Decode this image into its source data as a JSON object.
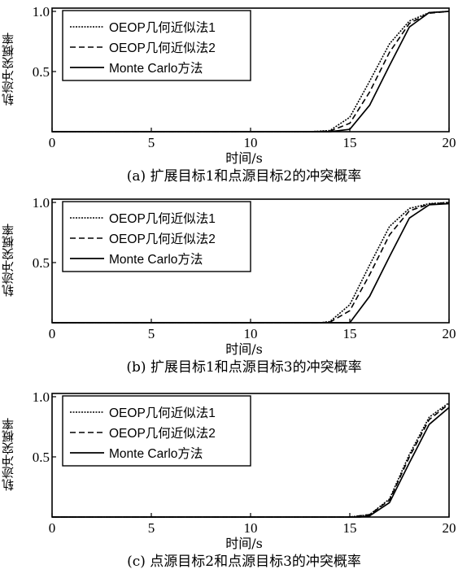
{
  "chart_data": [
    {
      "type": "line",
      "caption": "(a) 扩展目标1和点源目标2的冲突概率",
      "xlabel": "时间/s",
      "ylabel": "轨迹冲突概率",
      "xlim": [
        0,
        20
      ],
      "ylim": [
        0,
        1.0
      ],
      "xticks": [
        "0",
        "5",
        "10",
        "15",
        "20"
      ],
      "yticks": [
        "0.5",
        "1.0"
      ],
      "legend_position": "top-left",
      "series": [
        {
          "name": "OEOP几何近似法1",
          "style": "dotted",
          "x": [
            0,
            13,
            14,
            15,
            16,
            17,
            18,
            19,
            20
          ],
          "y": [
            0,
            0,
            0.01,
            0.12,
            0.42,
            0.73,
            0.92,
            0.99,
            1.0
          ]
        },
        {
          "name": "OEOP几何近似法2",
          "style": "dashed",
          "x": [
            0,
            13,
            14,
            15,
            16,
            17,
            18,
            19,
            20
          ],
          "y": [
            0,
            0,
            0.005,
            0.07,
            0.33,
            0.66,
            0.9,
            0.985,
            1.0
          ]
        },
        {
          "name": "Monte Carlo方法",
          "style": "solid",
          "x": [
            0,
            14,
            15,
            16,
            17,
            18,
            19,
            20
          ],
          "y": [
            0,
            0,
            0.02,
            0.22,
            0.55,
            0.87,
            0.99,
            1.0
          ]
        }
      ]
    },
    {
      "type": "line",
      "caption": "(b) 扩展目标1和点源目标3的冲突概率",
      "xlabel": "时间/s",
      "ylabel": "轨迹冲突概率",
      "xlim": [
        0,
        20
      ],
      "ylim": [
        0,
        1.0
      ],
      "xticks": [
        "0",
        "5",
        "10",
        "15",
        "20"
      ],
      "yticks": [
        "0.5",
        "1.0"
      ],
      "legend_position": "top-left",
      "series": [
        {
          "name": "OEOP几何近似法1",
          "style": "dotted",
          "x": [
            0,
            13.5,
            14,
            15,
            16,
            17,
            18,
            19,
            20
          ],
          "y": [
            0,
            0,
            0.01,
            0.15,
            0.48,
            0.8,
            0.95,
            0.99,
            1.0
          ]
        },
        {
          "name": "OEOP几何近似法2",
          "style": "dashed",
          "x": [
            0,
            13.5,
            14,
            15,
            16,
            17,
            18,
            19,
            20
          ],
          "y": [
            0,
            0,
            0.005,
            0.1,
            0.4,
            0.73,
            0.93,
            0.985,
            1.0
          ]
        },
        {
          "name": "Monte Carlo方法",
          "style": "solid",
          "x": [
            0,
            15,
            16,
            17,
            18,
            19,
            20
          ],
          "y": [
            0,
            0,
            0.22,
            0.55,
            0.87,
            0.98,
            0.99
          ]
        }
      ]
    },
    {
      "type": "line",
      "caption": "(c) 点源目标2和点源目标3的冲突概率",
      "xlabel": "时间/s",
      "ylabel": "轨迹冲突概率",
      "xlim": [
        0,
        20
      ],
      "ylim": [
        0,
        1.0
      ],
      "xticks": [
        "0",
        "5",
        "10",
        "15",
        "20"
      ],
      "yticks": [
        "0.5",
        "1.0"
      ],
      "legend_position": "top-left",
      "series": [
        {
          "name": "OEOP几何近似法1",
          "style": "dotted",
          "x": [
            0,
            15,
            16,
            17,
            18,
            19,
            20
          ],
          "y": [
            0,
            0,
            0.02,
            0.15,
            0.52,
            0.83,
            0.95
          ]
        },
        {
          "name": "OEOP几何近似法2",
          "style": "dashed",
          "x": [
            0,
            15,
            16,
            17,
            18,
            19,
            20
          ],
          "y": [
            0,
            0,
            0.02,
            0.14,
            0.5,
            0.81,
            0.94
          ]
        },
        {
          "name": "Monte Carlo方法",
          "style": "solid",
          "x": [
            0,
            15.5,
            16,
            17,
            18,
            19,
            20
          ],
          "y": [
            0,
            0,
            0.01,
            0.12,
            0.45,
            0.77,
            0.91
          ]
        }
      ]
    }
  ]
}
